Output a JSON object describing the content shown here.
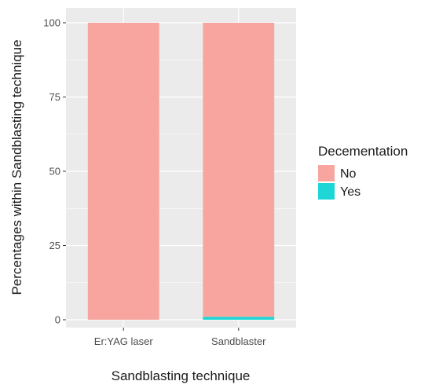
{
  "chart_data": {
    "type": "bar",
    "stacked": true,
    "categories": [
      "Er:YAG laser",
      "Sandblaster"
    ],
    "series": [
      {
        "name": "No",
        "values": [
          100,
          99
        ],
        "color": "#F8A5A0"
      },
      {
        "name": "Yes",
        "values": [
          0,
          1
        ],
        "color": "#1ED6D6"
      }
    ],
    "xlabel": "Sandblasting technique",
    "ylabel": "Percentages within Sandblasting technique",
    "ylim": [
      0,
      100
    ],
    "yticks": [
      0,
      25,
      50,
      75,
      100
    ],
    "grid": true,
    "legend": {
      "title": "Decementation",
      "position": "right"
    },
    "panel_background": "#EBEBEB",
    "grid_color": "#FFFFFF"
  }
}
